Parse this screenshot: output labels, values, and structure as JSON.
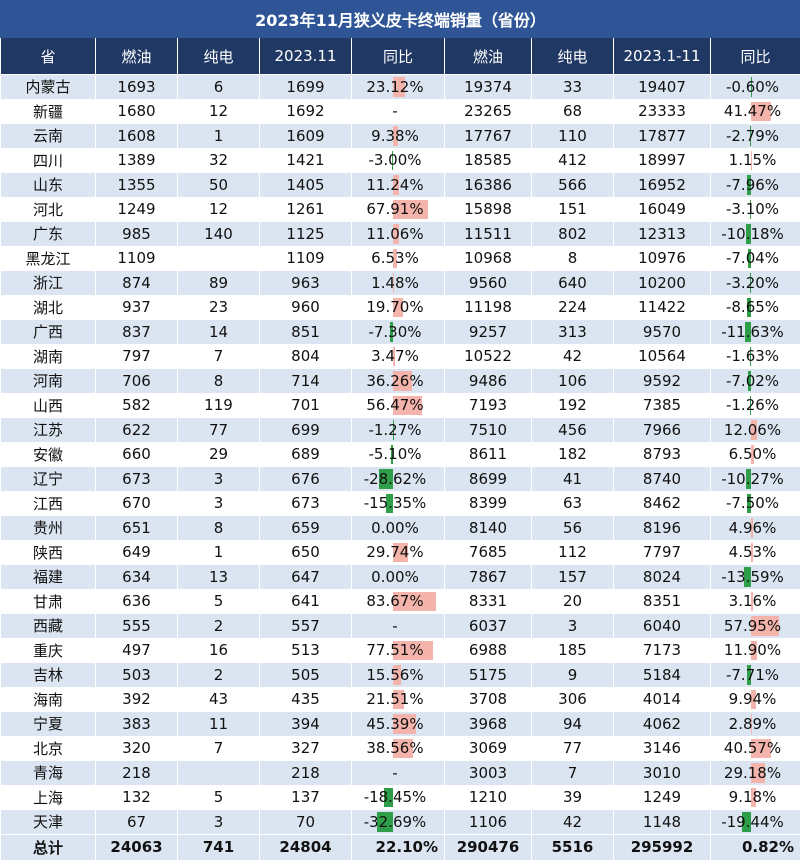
{
  "title": "2023年11月狭义皮卡终端销量（省份）",
  "columns": [
    "省",
    "燃油",
    "纯电",
    "2023.11",
    "同比",
    "燃油",
    "纯电",
    "2023.1-11",
    "同比"
  ],
  "colors": {
    "header_bg": "#203864",
    "title_bg": "#2f5597",
    "stripe": "#dbe5f1",
    "pos_bar": "#f4b4ab",
    "neg_bar": "#2e9e49"
  },
  "rows": [
    {
      "province": "内蒙古",
      "fuel_m": "1693",
      "ev_m": "6",
      "total_m": "1699",
      "yoy_m": "23.12%",
      "yoy_m_val": 23.12,
      "fuel_y": "19374",
      "ev_y": "33",
      "total_y": "19407",
      "yoy_y": "-0.60%",
      "yoy_y_val": -0.6
    },
    {
      "province": "新疆",
      "fuel_m": "1680",
      "ev_m": "12",
      "total_m": "1692",
      "yoy_m": "-",
      "yoy_m_val": null,
      "fuel_y": "23265",
      "ev_y": "68",
      "total_y": "23333",
      "yoy_y": "41.47%",
      "yoy_y_val": 41.47
    },
    {
      "province": "云南",
      "fuel_m": "1608",
      "ev_m": "1",
      "total_m": "1609",
      "yoy_m": "9.38%",
      "yoy_m_val": 9.38,
      "fuel_y": "17767",
      "ev_y": "110",
      "total_y": "17877",
      "yoy_y": "-2.79%",
      "yoy_y_val": -2.79
    },
    {
      "province": "四川",
      "fuel_m": "1389",
      "ev_m": "32",
      "total_m": "1421",
      "yoy_m": "-3.00%",
      "yoy_m_val": -3.0,
      "fuel_y": "18585",
      "ev_y": "412",
      "total_y": "18997",
      "yoy_y": "1.15%",
      "yoy_y_val": 1.15
    },
    {
      "province": "山东",
      "fuel_m": "1355",
      "ev_m": "50",
      "total_m": "1405",
      "yoy_m": "11.24%",
      "yoy_m_val": 11.24,
      "fuel_y": "16386",
      "ev_y": "566",
      "total_y": "16952",
      "yoy_y": "-7.96%",
      "yoy_y_val": -7.96
    },
    {
      "province": "河北",
      "fuel_m": "1249",
      "ev_m": "12",
      "total_m": "1261",
      "yoy_m": "67.91%",
      "yoy_m_val": 67.91,
      "fuel_y": "15898",
      "ev_y": "151",
      "total_y": "16049",
      "yoy_y": "-3.10%",
      "yoy_y_val": -3.1
    },
    {
      "province": "广东",
      "fuel_m": "985",
      "ev_m": "140",
      "total_m": "1125",
      "yoy_m": "11.06%",
      "yoy_m_val": 11.06,
      "fuel_y": "11511",
      "ev_y": "802",
      "total_y": "12313",
      "yoy_y": "-10.18%",
      "yoy_y_val": -10.18
    },
    {
      "province": "黑龙江",
      "fuel_m": "1109",
      "ev_m": "",
      "total_m": "1109",
      "yoy_m": "6.53%",
      "yoy_m_val": 6.53,
      "fuel_y": "10968",
      "ev_y": "8",
      "total_y": "10976",
      "yoy_y": "-7.04%",
      "yoy_y_val": -7.04
    },
    {
      "province": "浙江",
      "fuel_m": "874",
      "ev_m": "89",
      "total_m": "963",
      "yoy_m": "1.48%",
      "yoy_m_val": 1.48,
      "fuel_y": "9560",
      "ev_y": "640",
      "total_y": "10200",
      "yoy_y": "-3.20%",
      "yoy_y_val": -3.2
    },
    {
      "province": "湖北",
      "fuel_m": "937",
      "ev_m": "23",
      "total_m": "960",
      "yoy_m": "19.70%",
      "yoy_m_val": 19.7,
      "fuel_y": "11198",
      "ev_y": "224",
      "total_y": "11422",
      "yoy_y": "-8.65%",
      "yoy_y_val": -8.65
    },
    {
      "province": "广西",
      "fuel_m": "837",
      "ev_m": "14",
      "total_m": "851",
      "yoy_m": "-7.30%",
      "yoy_m_val": -7.3,
      "fuel_y": "9257",
      "ev_y": "313",
      "total_y": "9570",
      "yoy_y": "-11.63%",
      "yoy_y_val": -11.63
    },
    {
      "province": "湖南",
      "fuel_m": "797",
      "ev_m": "7",
      "total_m": "804",
      "yoy_m": "3.47%",
      "yoy_m_val": 3.47,
      "fuel_y": "10522",
      "ev_y": "42",
      "total_y": "10564",
      "yoy_y": "-1.63%",
      "yoy_y_val": -1.63
    },
    {
      "province": "河南",
      "fuel_m": "706",
      "ev_m": "8",
      "total_m": "714",
      "yoy_m": "36.26%",
      "yoy_m_val": 36.26,
      "fuel_y": "9486",
      "ev_y": "106",
      "total_y": "9592",
      "yoy_y": "-7.02%",
      "yoy_y_val": -7.02
    },
    {
      "province": "山西",
      "fuel_m": "582",
      "ev_m": "119",
      "total_m": "701",
      "yoy_m": "56.47%",
      "yoy_m_val": 56.47,
      "fuel_y": "7193",
      "ev_y": "192",
      "total_y": "7385",
      "yoy_y": "-1.26%",
      "yoy_y_val": -1.26
    },
    {
      "province": "江苏",
      "fuel_m": "622",
      "ev_m": "77",
      "total_m": "699",
      "yoy_m": "-1.27%",
      "yoy_m_val": -1.27,
      "fuel_y": "7510",
      "ev_y": "456",
      "total_y": "7966",
      "yoy_y": "12.06%",
      "yoy_y_val": 12.06
    },
    {
      "province": "安徽",
      "fuel_m": "660",
      "ev_m": "29",
      "total_m": "689",
      "yoy_m": "-5.10%",
      "yoy_m_val": -5.1,
      "fuel_y": "8611",
      "ev_y": "182",
      "total_y": "8793",
      "yoy_y": "6.50%",
      "yoy_y_val": 6.5
    },
    {
      "province": "辽宁",
      "fuel_m": "673",
      "ev_m": "3",
      "total_m": "676",
      "yoy_m": "-28.62%",
      "yoy_m_val": -28.62,
      "fuel_y": "8699",
      "ev_y": "41",
      "total_y": "8740",
      "yoy_y": "-10.27%",
      "yoy_y_val": -10.27
    },
    {
      "province": "江西",
      "fuel_m": "670",
      "ev_m": "3",
      "total_m": "673",
      "yoy_m": "-15.35%",
      "yoy_m_val": -15.35,
      "fuel_y": "8399",
      "ev_y": "63",
      "total_y": "8462",
      "yoy_y": "-7.50%",
      "yoy_y_val": -7.5
    },
    {
      "province": "贵州",
      "fuel_m": "651",
      "ev_m": "8",
      "total_m": "659",
      "yoy_m": "0.00%",
      "yoy_m_val": 0.0,
      "fuel_y": "8140",
      "ev_y": "56",
      "total_y": "8196",
      "yoy_y": "4.96%",
      "yoy_y_val": 4.96
    },
    {
      "province": "陕西",
      "fuel_m": "649",
      "ev_m": "1",
      "total_m": "650",
      "yoy_m": "29.74%",
      "yoy_m_val": 29.74,
      "fuel_y": "7685",
      "ev_y": "112",
      "total_y": "7797",
      "yoy_y": "4.53%",
      "yoy_y_val": 4.53
    },
    {
      "province": "福建",
      "fuel_m": "634",
      "ev_m": "13",
      "total_m": "647",
      "yoy_m": "0.00%",
      "yoy_m_val": 0.0,
      "fuel_y": "7867",
      "ev_y": "157",
      "total_y": "8024",
      "yoy_y": "-13.59%",
      "yoy_y_val": -13.59
    },
    {
      "province": "甘肃",
      "fuel_m": "636",
      "ev_m": "5",
      "total_m": "641",
      "yoy_m": "83.67%",
      "yoy_m_val": 83.67,
      "fuel_y": "8331",
      "ev_y": "20",
      "total_y": "8351",
      "yoy_y": "3.16%",
      "yoy_y_val": 3.16
    },
    {
      "province": "西藏",
      "fuel_m": "555",
      "ev_m": "2",
      "total_m": "557",
      "yoy_m": "-",
      "yoy_m_val": null,
      "fuel_y": "6037",
      "ev_y": "3",
      "total_y": "6040",
      "yoy_y": "57.95%",
      "yoy_y_val": 57.95
    },
    {
      "province": "重庆",
      "fuel_m": "497",
      "ev_m": "16",
      "total_m": "513",
      "yoy_m": "77.51%",
      "yoy_m_val": 77.51,
      "fuel_y": "6988",
      "ev_y": "185",
      "total_y": "7173",
      "yoy_y": "11.90%",
      "yoy_y_val": 11.9
    },
    {
      "province": "吉林",
      "fuel_m": "503",
      "ev_m": "2",
      "total_m": "505",
      "yoy_m": "15.56%",
      "yoy_m_val": 15.56,
      "fuel_y": "5175",
      "ev_y": "9",
      "total_y": "5184",
      "yoy_y": "-7.71%",
      "yoy_y_val": -7.71
    },
    {
      "province": "海南",
      "fuel_m": "392",
      "ev_m": "43",
      "total_m": "435",
      "yoy_m": "21.51%",
      "yoy_m_val": 21.51,
      "fuel_y": "3708",
      "ev_y": "306",
      "total_y": "4014",
      "yoy_y": "9.94%",
      "yoy_y_val": 9.94
    },
    {
      "province": "宁夏",
      "fuel_m": "383",
      "ev_m": "11",
      "total_m": "394",
      "yoy_m": "45.39%",
      "yoy_m_val": 45.39,
      "fuel_y": "3968",
      "ev_y": "94",
      "total_y": "4062",
      "yoy_y": "2.89%",
      "yoy_y_val": 2.89
    },
    {
      "province": "北京",
      "fuel_m": "320",
      "ev_m": "7",
      "total_m": "327",
      "yoy_m": "38.56%",
      "yoy_m_val": 38.56,
      "fuel_y": "3069",
      "ev_y": "77",
      "total_y": "3146",
      "yoy_y": "40.57%",
      "yoy_y_val": 40.57
    },
    {
      "province": "青海",
      "fuel_m": "218",
      "ev_m": "",
      "total_m": "218",
      "yoy_m": "-",
      "yoy_m_val": null,
      "fuel_y": "3003",
      "ev_y": "7",
      "total_y": "3010",
      "yoy_y": "29.18%",
      "yoy_y_val": 29.18
    },
    {
      "province": "上海",
      "fuel_m": "132",
      "ev_m": "5",
      "total_m": "137",
      "yoy_m": "-18.45%",
      "yoy_m_val": -18.45,
      "fuel_y": "1210",
      "ev_y": "39",
      "total_y": "1249",
      "yoy_y": "9.18%",
      "yoy_y_val": 9.18
    },
    {
      "province": "天津",
      "fuel_m": "67",
      "ev_m": "3",
      "total_m": "70",
      "yoy_m": "-32.69%",
      "yoy_m_val": -32.69,
      "fuel_y": "1106",
      "ev_y": "42",
      "total_y": "1148",
      "yoy_y": "-19.44%",
      "yoy_y_val": -19.44
    }
  ],
  "total": {
    "label": "总计",
    "fuel_m": "24063",
    "ev_m": "741",
    "total_m": "24804",
    "yoy_m": "22.10%",
    "fuel_y": "290476",
    "ev_y": "5516",
    "total_y": "295992",
    "yoy_y": "0.82%"
  }
}
